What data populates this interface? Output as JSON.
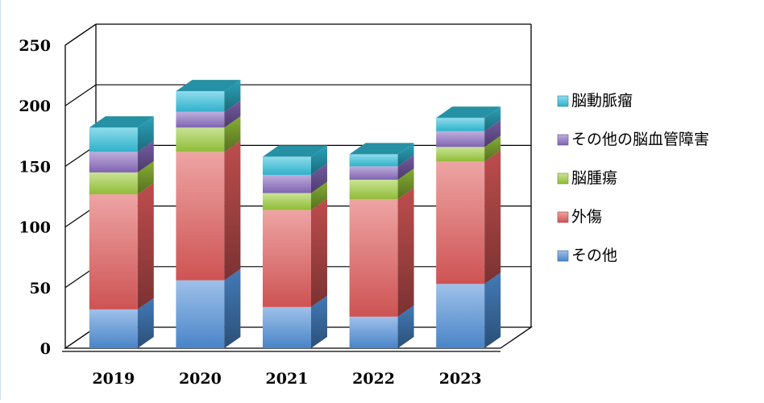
{
  "chart_data": {
    "type": "bar",
    "stacked": true,
    "three_d": true,
    "categories": [
      "2019",
      "2020",
      "2021",
      "2022",
      "2023"
    ],
    "series": [
      {
        "name": "その他",
        "values": [
          32,
          56,
          34,
          26,
          53
        ],
        "color": "#4f8fd8"
      },
      {
        "name": "外傷",
        "values": [
          95,
          106,
          80,
          97,
          101
        ],
        "color": "#e05a5a"
      },
      {
        "name": "脳腫瘍",
        "values": [
          18,
          20,
          14,
          16,
          12
        ],
        "color": "#9ccc3c"
      },
      {
        "name": "その他の脳血管障害",
        "values": [
          17,
          13,
          15,
          11,
          13
        ],
        "color": "#8a6cc0"
      },
      {
        "name": "脳動脈瘤",
        "values": [
          20,
          17,
          15,
          10,
          11
        ],
        "color": "#33c0dc"
      }
    ],
    "ylim": [
      0,
      250
    ],
    "yticks": [
      0,
      50,
      100,
      150,
      200,
      250
    ],
    "grid": true,
    "legend_position": "right",
    "title": "",
    "xlabel": "",
    "ylabel": ""
  }
}
